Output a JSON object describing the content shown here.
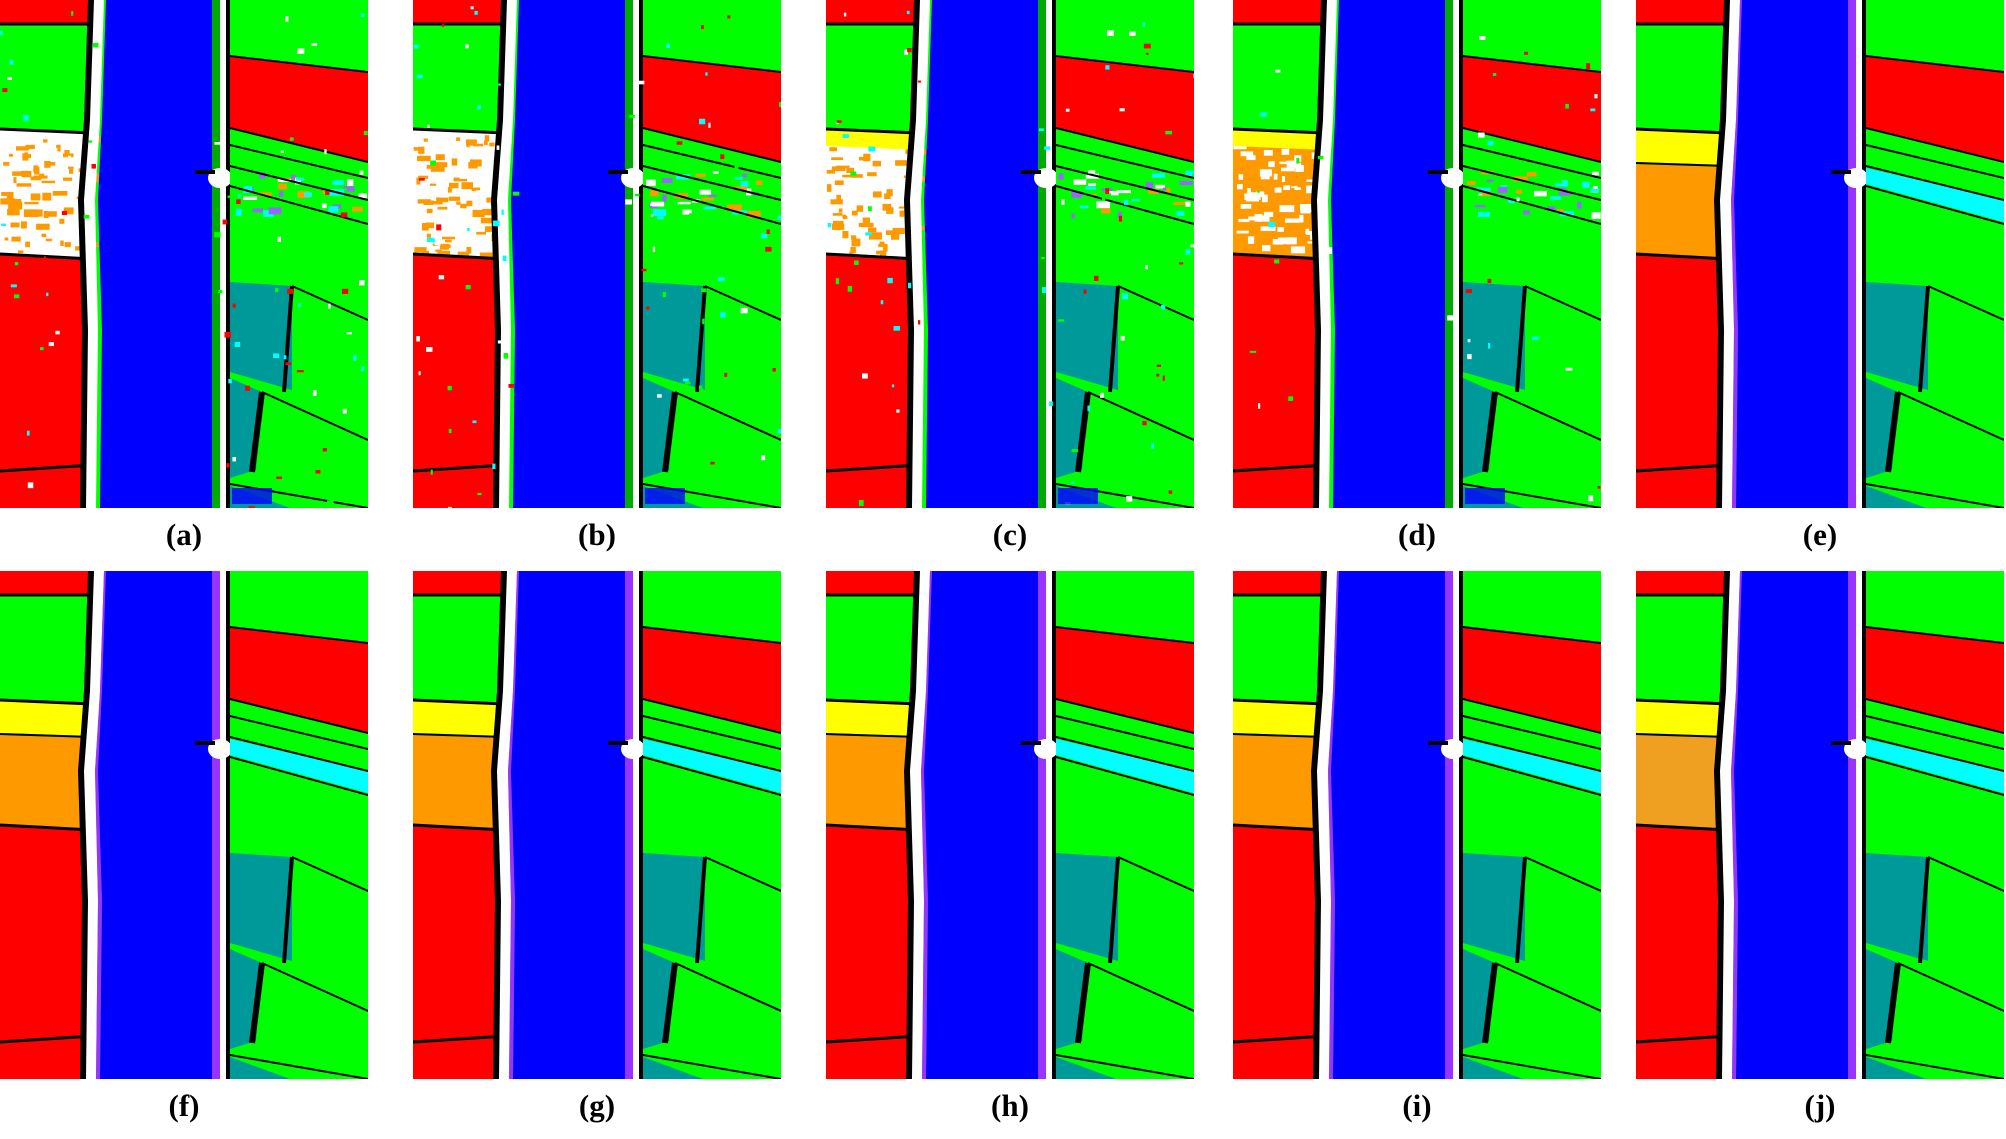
{
  "panels": [
    {
      "label": "(a)",
      "noise": "high"
    },
    {
      "label": "(b)",
      "noise": "high"
    },
    {
      "label": "(c)",
      "noise": "high"
    },
    {
      "label": "(d)",
      "noise": "medium"
    },
    {
      "label": "(e)",
      "noise": "none"
    },
    {
      "label": "(f)",
      "noise": "none"
    },
    {
      "label": "(g)",
      "noise": "none"
    },
    {
      "label": "(h)",
      "noise": "none"
    },
    {
      "label": "(i)",
      "noise": "none"
    },
    {
      "label": "(j)",
      "noise": "none"
    }
  ],
  "colors": {
    "water": "#0000ff",
    "field": "#00ff00",
    "crop_red": "#ff0000",
    "crop_yellow": "#ffff00",
    "crop_orange": "#ff9900",
    "crop_teal": "#009999",
    "crop_cyan": "#00ffff",
    "bank_white": "#ffffff",
    "boundary_black": "#000000",
    "bank_purple": "#9933ff"
  }
}
